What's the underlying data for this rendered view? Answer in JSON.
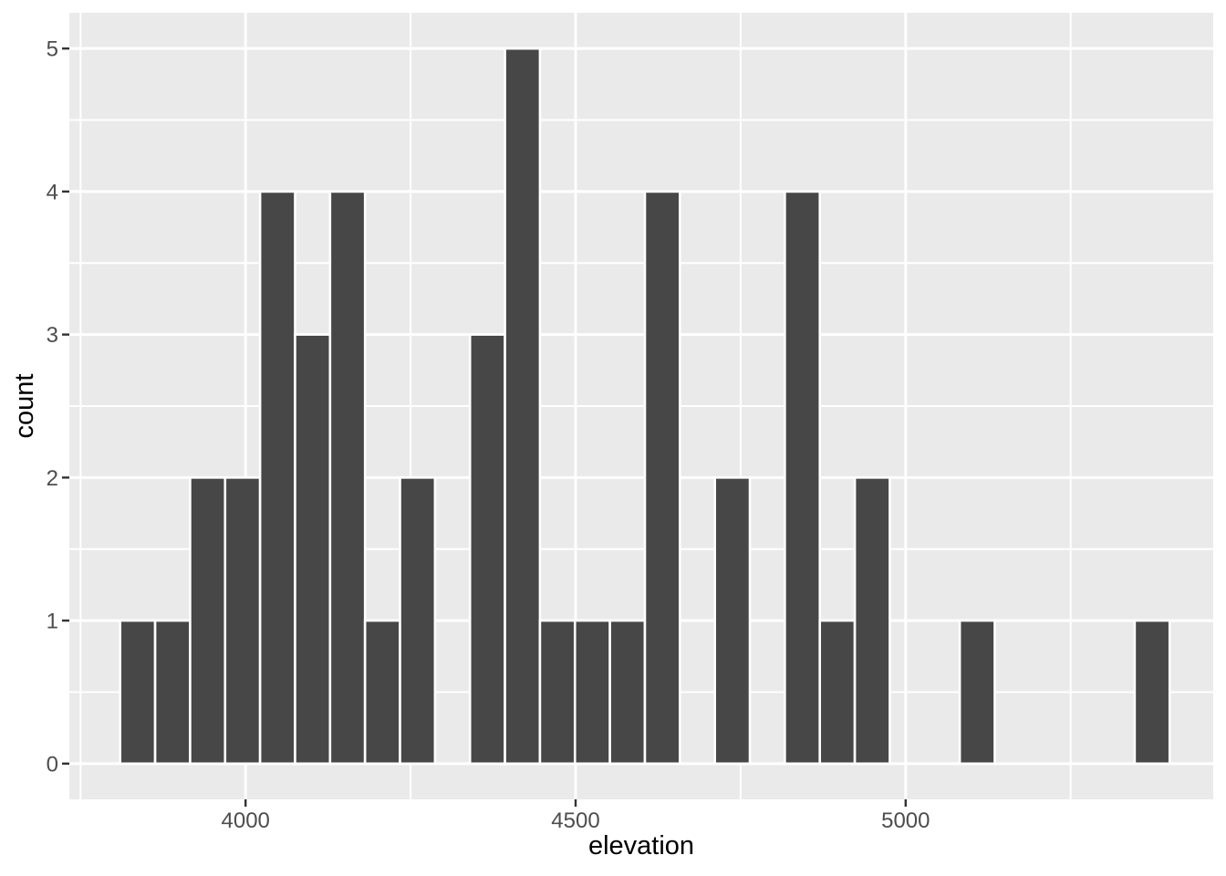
{
  "chart_data": {
    "type": "bar",
    "subtype": "histogram",
    "xlabel": "elevation",
    "ylabel": "count",
    "bin_start": 3810,
    "bin_width": 53,
    "bin_centers": [
      3836.5,
      3889.5,
      3942.5,
      3995.5,
      4048.5,
      4101.5,
      4154.5,
      4207.5,
      4260.5,
      4313.5,
      4366.5,
      4419.5,
      4472.5,
      4525.5,
      4578.5,
      4631.5,
      4684.5,
      4737.5,
      4790.5,
      4843.5,
      4896.5,
      4949.5,
      5002.5,
      5055.5,
      5108.5,
      5161.5,
      5214.5,
      5267.5,
      5320.5,
      5373.5
    ],
    "counts": [
      1,
      1,
      2,
      2,
      4,
      3,
      4,
      1,
      2,
      0,
      3,
      5,
      1,
      1,
      1,
      4,
      0,
      2,
      0,
      4,
      1,
      2,
      0,
      0,
      1,
      0,
      0,
      0,
      0,
      1
    ],
    "total_observations": 46,
    "x_ticks": [
      4000,
      4500,
      5000
    ],
    "x_tick_labels": [
      "4000",
      "4500",
      "5000"
    ],
    "x_minor_ticks": [
      3750,
      4250,
      4750,
      5250
    ],
    "y_ticks": [
      0,
      1,
      2,
      3,
      4,
      5
    ],
    "y_tick_labels": [
      "0",
      "1",
      "2",
      "3",
      "4",
      "5"
    ],
    "y_minor_ticks": [
      0.5,
      1.5,
      2.5,
      3.5,
      4.5
    ],
    "xlim": [
      3733,
      5466
    ],
    "ylim": [
      -0.25,
      5.25
    ],
    "grid": true,
    "legend_position": "none",
    "colors": {
      "bar_fill": "#474747",
      "bar_stroke": "#ffffff",
      "panel_bg": "#eaeaea",
      "grid_major": "#ffffff",
      "grid_minor": "#ffffff",
      "axis_text": "#4d4d4d",
      "tick_mark": "#333333",
      "axis_title": "#000000",
      "outer_bg": "#ffffff"
    }
  }
}
